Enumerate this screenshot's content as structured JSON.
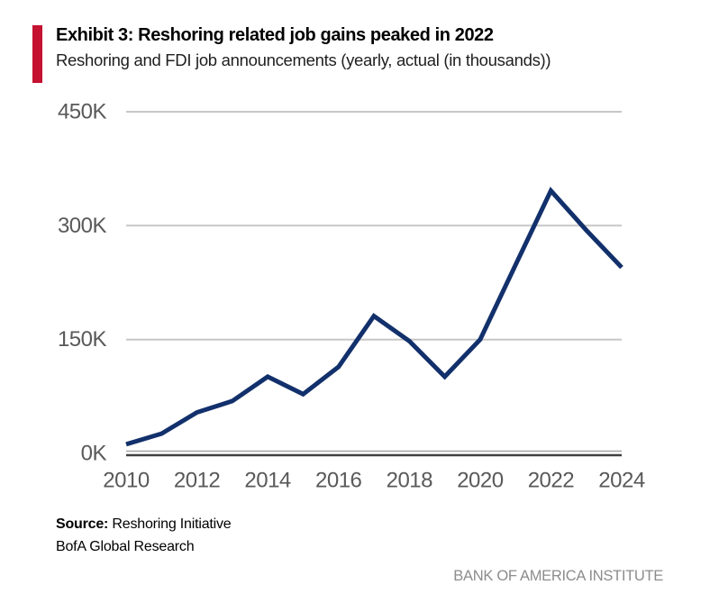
{
  "header": {
    "title": "Exhibit 3: Reshoring related job gains peaked in 2022",
    "subtitle": "Reshoring and FDI job announcements (yearly, actual (in thousands))"
  },
  "footer": {
    "source_label": "Source:",
    "source_text": " Reshoring Initiative",
    "source_line2": "BofA Global Research",
    "branding": "BANK OF AMERICA INSTITUTE"
  },
  "colors": {
    "accent_red": "#c41230",
    "line_navy": "#12306b",
    "grid_gray": "#c7c7c7",
    "axis_gray_line": "#a6a6a6",
    "axis_dark_line": "#404040",
    "axis_text": "#595959",
    "branding_gray": "#8c8c8c"
  },
  "chart_data": {
    "type": "line",
    "title": "Exhibit 3: Reshoring related job gains peaked in 2022",
    "subtitle": "Reshoring and FDI job announcements (yearly, actual (in thousands))",
    "series_name": "Reshoring and FDI job announcements (thousands)",
    "x": [
      2010,
      2011,
      2012,
      2013,
      2014,
      2015,
      2016,
      2017,
      2018,
      2019,
      2020,
      2021,
      2022,
      2023,
      2024
    ],
    "values": [
      12,
      26,
      54,
      69,
      101,
      78,
      114,
      181,
      148,
      101,
      150,
      248,
      346,
      294,
      245
    ],
    "xlabel": "",
    "ylabel": "",
    "ylim": [
      0,
      450
    ],
    "y_ticks": [
      0,
      150,
      300,
      450
    ],
    "y_tick_labels": [
      "0K",
      "150K",
      "300K",
      "450K"
    ],
    "x_tick_labels": [
      "2010",
      "2012",
      "2014",
      "2016",
      "2018",
      "2020",
      "2022",
      "2024"
    ],
    "grid": "horizontal gridlines every 150K, plot area only",
    "legend": "none",
    "line_color": "#12306b"
  }
}
